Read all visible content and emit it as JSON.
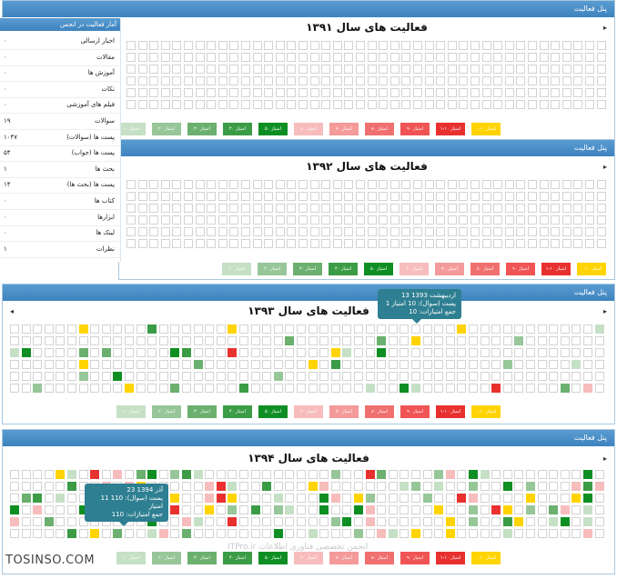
{
  "panels": [
    {
      "header": "پنل فعالیت",
      "title": "فعالیت های سال ۱۳۹۱"
    },
    {
      "header": "پنل فعالیت",
      "title": "فعالیت های سال ۱۳۹۲"
    },
    {
      "header": "پنل فعالیت",
      "title": "فعالیت های سال ۱۳۹۳"
    },
    {
      "header": "پنل فعالیت",
      "title": "فعالیت های سال ۱۳۹۴"
    }
  ],
  "legend": [
    {
      "label": "۰-۱۰ امتیاز",
      "color": "#ffd400"
    },
    {
      "label": "۱-۱۰ امتیاز",
      "color": "#e8312f"
    },
    {
      "label": "۹۰ امتیاز",
      "color": "#f05454"
    },
    {
      "label": "۸۰ امتیاز",
      "color": "#f07070"
    },
    {
      "label": "۷۰ امتیاز",
      "color": "#f49a9a"
    },
    {
      "label": "۶۰ امتیاز",
      "color": "#f7bcbc"
    },
    {
      "label": "۵۰ امتیاز",
      "color": "#0f8f23"
    },
    {
      "label": "۴۰ امتیاز",
      "color": "#3c9c46"
    },
    {
      "label": "۳۰ امتیاز",
      "color": "#6bb06f"
    },
    {
      "label": "۲۰ امتیاز",
      "color": "#97c699"
    },
    {
      "label": "۱۰ امتیاز",
      "color": "#c6e0c6"
    }
  ],
  "stats": {
    "header": "آمار فعالیت در انجمن",
    "rows": [
      {
        "label": "اخبار ارسالی",
        "value": "۰"
      },
      {
        "label": "مقالات",
        "value": "۰"
      },
      {
        "label": "آموزش ها",
        "value": "۰"
      },
      {
        "label": "نکات",
        "value": "۰"
      },
      {
        "label": "فیلم های آموزشی",
        "value": "۰"
      },
      {
        "label": "سوالات",
        "value": "۱۹"
      },
      {
        "label": "پست ها (سوالات)",
        "value": "۱۰۴۷"
      },
      {
        "label": "پست ها (جواب)",
        "value": "۵۴"
      },
      {
        "label": "بحث ها",
        "value": "۱"
      },
      {
        "label": "پست ها (بحث ها)",
        "value": "۱۴"
      },
      {
        "label": "کتاب ها",
        "value": "۰"
      },
      {
        "label": "ابزارها",
        "value": "۰"
      },
      {
        "label": "لینک ها",
        "value": "۰"
      },
      {
        "label": "نظرات",
        "value": "۱"
      }
    ]
  },
  "tooltips": [
    {
      "line1": "13 اردیبهشت 1393",
      "line2": "1 پست (سوال): 10 امتیاز",
      "line3": "جمع امتیازات: 10"
    },
    {
      "line1": "23 آذر 1394",
      "line2": "11 پست (سوال): 110 امتیاز",
      "line3": "جمع امتیازات: 110"
    }
  ],
  "watermark": "ITPro.ir انجمن تخصصی فناوری اطلاعات",
  "brand": "TOSINSO.COM",
  "nav": {
    "next": "▸",
    "prev": "◂"
  }
}
